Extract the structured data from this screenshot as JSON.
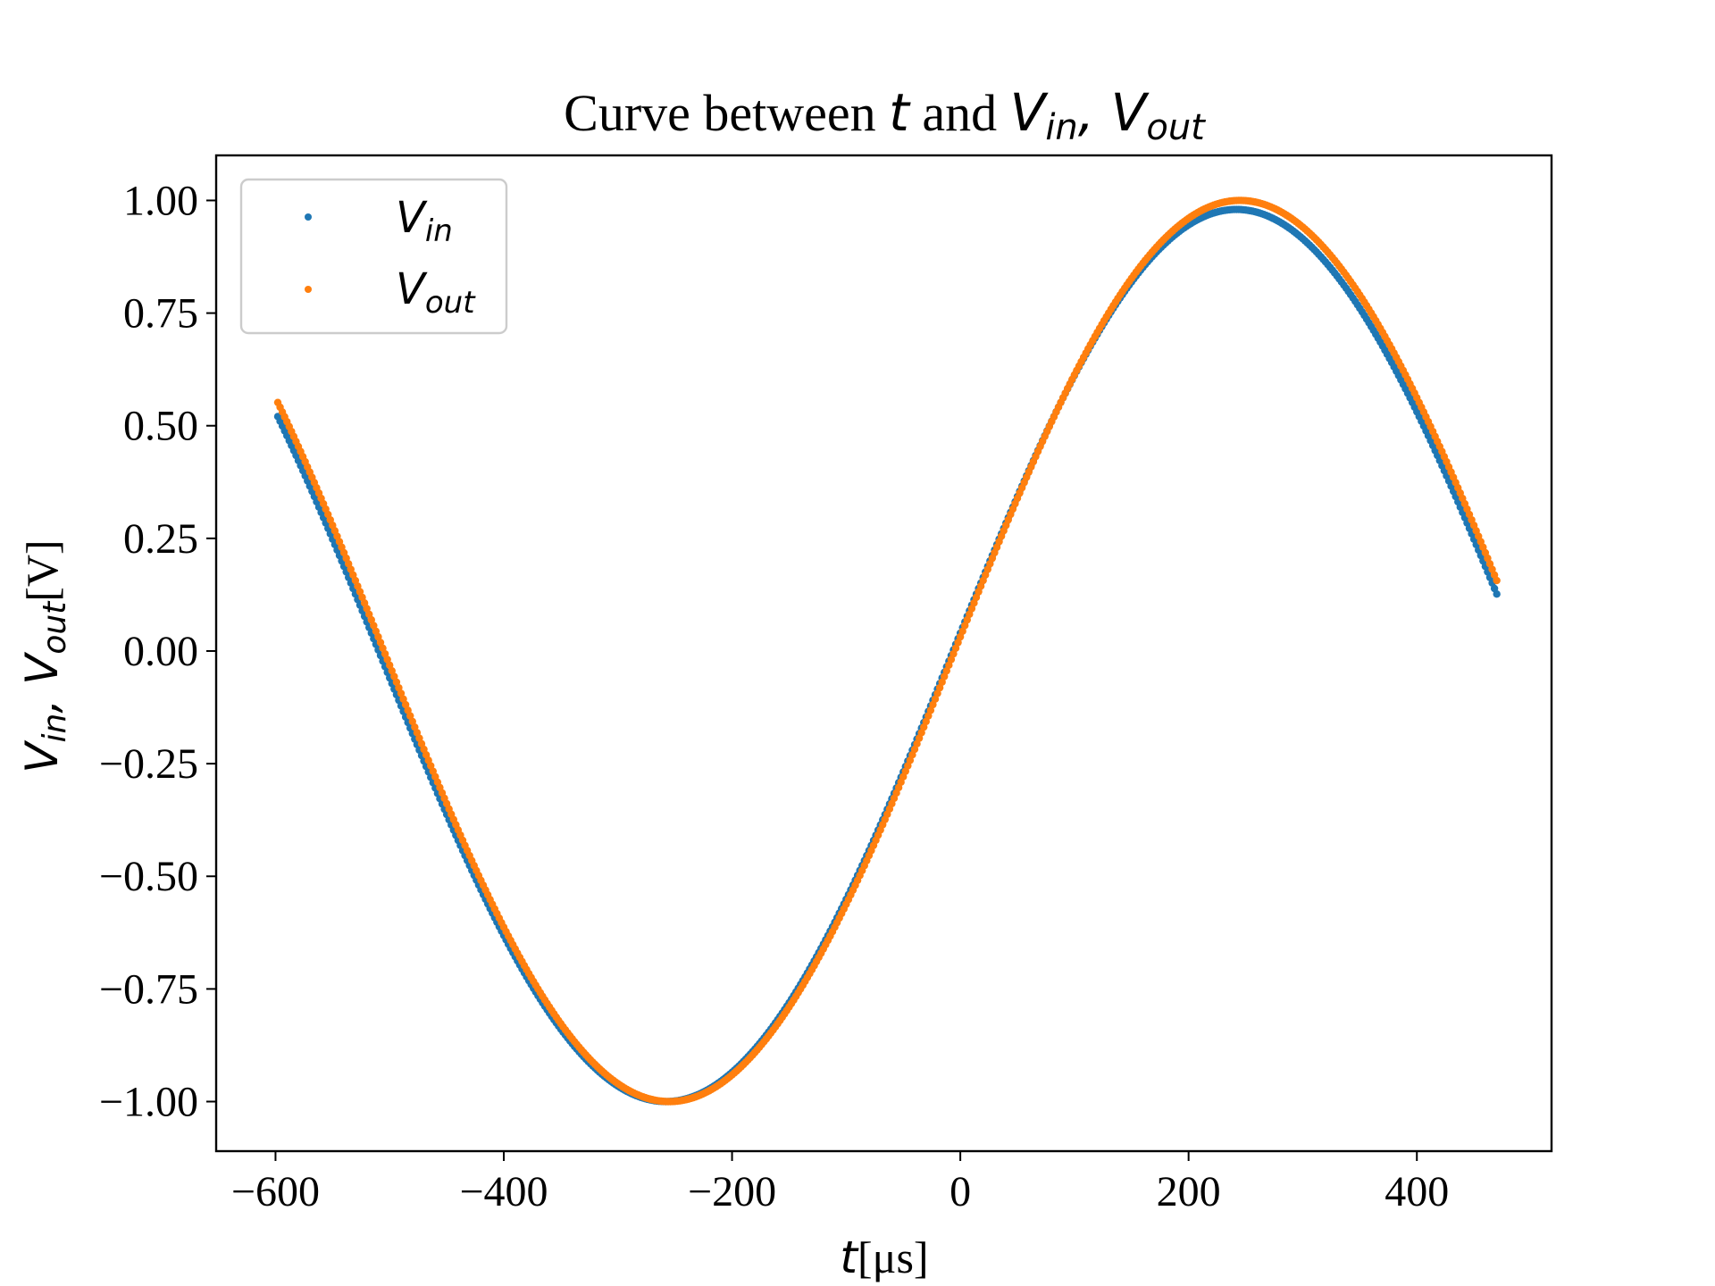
{
  "chart_data": {
    "type": "scatter",
    "title": {
      "prefix": "Curve between ",
      "t": "t",
      "mid": " and ",
      "vin_main": "V",
      "vin_sub": "in",
      "comma": ", ",
      "vout_main": "V",
      "vout_sub": "out"
    },
    "xlabel": {
      "main": "t",
      "rest": "[μs]"
    },
    "ylabel": {
      "vin_main": "V",
      "vin_sub": "in",
      "comma": ", ",
      "vout_main": "V",
      "vout_sub": "out",
      "unit": "[V]"
    },
    "xlim": [
      -652,
      518
    ],
    "ylim": [
      -1.11,
      1.1
    ],
    "xticks": [
      {
        "value": -600,
        "label": "−600"
      },
      {
        "value": -400,
        "label": "−400"
      },
      {
        "value": -200,
        "label": "−200"
      },
      {
        "value": 0,
        "label": "0"
      },
      {
        "value": 200,
        "label": "200"
      },
      {
        "value": 400,
        "label": "400"
      }
    ],
    "yticks": [
      {
        "value": 1.0,
        "label": "1.00"
      },
      {
        "value": 0.75,
        "label": "0.75"
      },
      {
        "value": 0.5,
        "label": "0.50"
      },
      {
        "value": 0.25,
        "label": "0.25"
      },
      {
        "value": 0.0,
        "label": "0.00"
      },
      {
        "value": -0.25,
        "label": "−0.25"
      },
      {
        "value": -0.5,
        "label": "−0.50"
      },
      {
        "value": -0.75,
        "label": "−0.75"
      },
      {
        "value": -1.0,
        "label": "−1.00"
      }
    ],
    "grid": false,
    "legend_position": "top-left",
    "series": [
      {
        "name": "Vin",
        "legend_main": "V",
        "legend_sub": "in",
        "color": "#1f77b4",
        "x_range": [
          -598,
          470
        ],
        "sample_step": 2,
        "period": 1000,
        "phase_offset": -8,
        "amplitude": 0.99,
        "offset": -0.01,
        "start_value": 0.54,
        "end_value": 0.17
      },
      {
        "name": "Vout",
        "legend_main": "V",
        "legend_sub": "out",
        "color": "#ff7f0e",
        "x_range": [
          -598,
          470
        ],
        "sample_step": 2,
        "period": 1000,
        "phase_offset": -5,
        "amplitude": 1.0,
        "offset": 0.0,
        "start_value": 0.53,
        "end_value": 0.16
      }
    ]
  }
}
